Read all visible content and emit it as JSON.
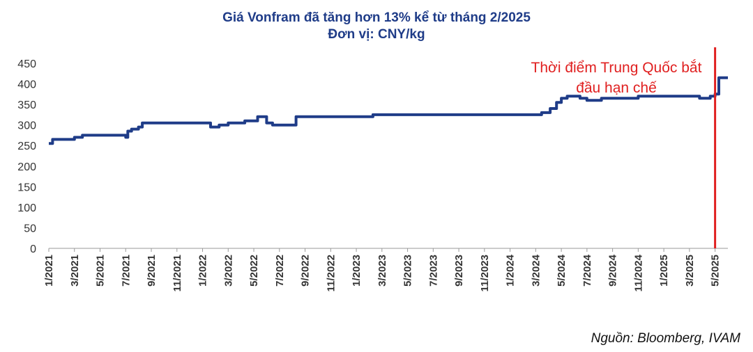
{
  "title": "Giá Vonfram đã tăng hơn 13% kể từ tháng 2/2025",
  "subtitle": "Đơn vị: CNY/kg",
  "source": "Nguồn: Bloomberg, IVAM",
  "colors": {
    "line": "#1f3c88",
    "marker": "#e02020",
    "title": "#1f3c88",
    "axis": "#999999"
  },
  "chart_data": {
    "type": "line",
    "title": "Giá Vonfram đã tăng hơn 13% kể từ tháng 2/2025",
    "subtitle": "Đơn vị: CNY/kg",
    "ylim": [
      0,
      450
    ],
    "yticks": [
      0,
      50,
      100,
      150,
      200,
      250,
      300,
      350,
      400,
      450
    ],
    "xlim": [
      "2021-01",
      "2025-06"
    ],
    "xticks": [
      "1/2021",
      "3/2021",
      "5/2021",
      "7/2021",
      "9/2021",
      "11/2021",
      "1/2022",
      "3/2022",
      "5/2022",
      "7/2022",
      "9/2022",
      "11/2022",
      "1/2023",
      "3/2023",
      "5/2023",
      "7/2023",
      "9/2023",
      "11/2023",
      "1/2024",
      "3/2024",
      "5/2024",
      "7/2024",
      "9/2024",
      "11/2024",
      "1/2025",
      "3/2025",
      "5/2025"
    ],
    "grid": false,
    "legend": "none",
    "series": [
      {
        "x": [
          "2021-01-01",
          "2021-01-10",
          "2021-02-20",
          "2021-03-01",
          "2021-03-20",
          "2021-07-01",
          "2021-07-06",
          "2021-07-15",
          "2021-08-01",
          "2021-08-10",
          "2021-12-01",
          "2022-01-20",
          "2022-02-10",
          "2022-03-01",
          "2022-04-10",
          "2022-04-25",
          "2022-05-10",
          "2022-06-01",
          "2022-06-15",
          "2022-08-01",
          "2022-08-10",
          "2023-02-01",
          "2023-02-10",
          "2024-02-05",
          "2024-03-15",
          "2024-03-25",
          "2024-04-05",
          "2024-04-20",
          "2024-05-01",
          "2024-05-15",
          "2024-06-15",
          "2024-07-01",
          "2024-08-05",
          "2024-11-01",
          "2025-02-01",
          "2025-03-25",
          "2025-04-15",
          "2025-04-20",
          "2025-05-01",
          "2025-05-10",
          "2025-05-25"
        ],
        "y": [
          255,
          265,
          265,
          270,
          275,
          270,
          285,
          290,
          295,
          305,
          305,
          295,
          300,
          305,
          310,
          310,
          320,
          305,
          300,
          300,
          320,
          320,
          325,
          325,
          330,
          330,
          340,
          355,
          365,
          370,
          365,
          360,
          365,
          370,
          370,
          365,
          365,
          370,
          375,
          415,
          415
        ]
      }
    ],
    "annotations": [
      {
        "text_lines": [
          "Thời điểm Trung Quốc bắt",
          "đầu hạn chế"
        ],
        "x": "2025-05-01",
        "type": "vertical-line"
      }
    ]
  }
}
